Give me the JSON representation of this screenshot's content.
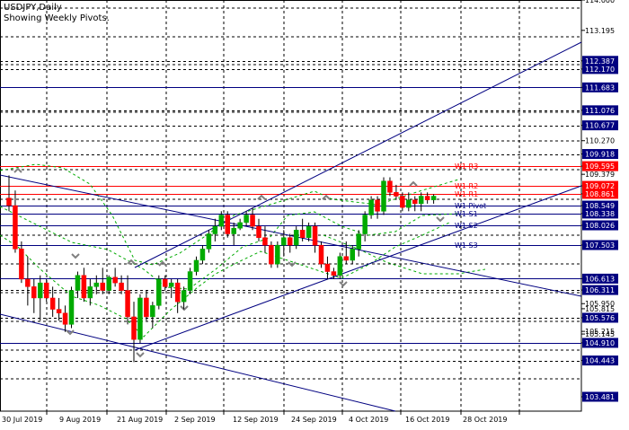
{
  "header": {
    "symbol_title": "USDJPY,Daily",
    "subtitle": "Showing Weekly Pivots."
  },
  "chart_data": {
    "type": "candlestick",
    "symbol": "USDJPY",
    "timeframe": "Daily",
    "ylim": [
      103.1,
      114.0
    ],
    "grid": true,
    "colors": {
      "up": "#00aa00",
      "down": "#ff0000",
      "pivot_resistance": "#ff0000",
      "pivot_support": "#000080",
      "level": "#000080",
      "channel": "#000080",
      "envelope": "#00aa00",
      "marker": "#808080"
    },
    "x_tick_labels": [
      "30 Jul 2019",
      "9 Aug 2019",
      "21 Aug 2019",
      "2 Sep 2019",
      "12 Sep 2019",
      "24 Sep 2019",
      "4 Oct 2019",
      "16 Oct 2019",
      "28 Oct 2019"
    ],
    "y_tick_labels": [
      "114.000",
      "113.195",
      "112.387",
      "112.170",
      "111.683",
      "111.076",
      "110.677",
      "109.918",
      "109.595",
      "109.072",
      "108.861",
      "108.549",
      "108.338",
      "108.026",
      "107.503",
      "106.613",
      "106.311",
      "105.576",
      "104.910",
      "104.443",
      "103.481"
    ],
    "partly_hidden_tick_labels": [
      "110.270",
      "109.379",
      "105.950",
      "105.815",
      "105.215",
      "105.145"
    ],
    "pivot_labels": [
      "W1 R3",
      "W1 R2",
      "W1 R1",
      "W1 Pivot",
      "W1 S1",
      "W1 S2",
      "W1 S3"
    ],
    "candles": [
      {
        "o": 108.75,
        "h": 109.35,
        "l": 108.4,
        "c": 108.55
      },
      {
        "o": 108.55,
        "h": 108.95,
        "l": 107.3,
        "c": 107.4
      },
      {
        "o": 107.4,
        "h": 107.6,
        "l": 106.5,
        "c": 106.6
      },
      {
        "o": 106.6,
        "h": 107.2,
        "l": 105.9,
        "c": 106.4
      },
      {
        "o": 106.4,
        "h": 106.6,
        "l": 105.7,
        "c": 106.1
      },
      {
        "o": 106.1,
        "h": 106.7,
        "l": 105.5,
        "c": 106.5
      },
      {
        "o": 106.5,
        "h": 106.6,
        "l": 106.0,
        "c": 106.1
      },
      {
        "o": 106.1,
        "h": 106.4,
        "l": 105.6,
        "c": 105.8
      },
      {
        "o": 105.8,
        "h": 106.1,
        "l": 105.5,
        "c": 105.7
      },
      {
        "o": 105.7,
        "h": 105.9,
        "l": 105.2,
        "c": 105.4
      },
      {
        "o": 105.4,
        "h": 106.4,
        "l": 105.3,
        "c": 106.3
      },
      {
        "o": 106.3,
        "h": 106.8,
        "l": 106.1,
        "c": 106.7
      },
      {
        "o": 106.7,
        "h": 106.9,
        "l": 106.0,
        "c": 106.1
      },
      {
        "o": 106.1,
        "h": 106.6,
        "l": 105.9,
        "c": 106.4
      },
      {
        "o": 106.4,
        "h": 106.7,
        "l": 106.2,
        "c": 106.5
      },
      {
        "o": 106.5,
        "h": 106.9,
        "l": 106.2,
        "c": 106.3
      },
      {
        "o": 106.3,
        "h": 106.7,
        "l": 106.2,
        "c": 106.65
      },
      {
        "o": 106.65,
        "h": 106.9,
        "l": 106.4,
        "c": 106.5
      },
      {
        "o": 106.5,
        "h": 106.7,
        "l": 106.2,
        "c": 106.3
      },
      {
        "o": 106.3,
        "h": 106.7,
        "l": 105.4,
        "c": 105.6
      },
      {
        "o": 105.6,
        "h": 106.0,
        "l": 104.4,
        "c": 105.0
      },
      {
        "o": 105.0,
        "h": 106.2,
        "l": 104.9,
        "c": 106.1
      },
      {
        "o": 106.1,
        "h": 106.3,
        "l": 105.5,
        "c": 105.6
      },
      {
        "o": 105.6,
        "h": 106.0,
        "l": 105.3,
        "c": 105.9
      },
      {
        "o": 105.9,
        "h": 106.7,
        "l": 105.8,
        "c": 106.6
      },
      {
        "o": 106.6,
        "h": 106.7,
        "l": 106.3,
        "c": 106.4
      },
      {
        "o": 106.4,
        "h": 106.6,
        "l": 106.1,
        "c": 106.5
      },
      {
        "o": 106.5,
        "h": 106.6,
        "l": 105.7,
        "c": 106.0
      },
      {
        "o": 106.0,
        "h": 106.4,
        "l": 105.8,
        "c": 106.3
      },
      {
        "o": 106.3,
        "h": 106.9,
        "l": 106.2,
        "c": 106.8
      },
      {
        "o": 106.8,
        "h": 107.2,
        "l": 106.7,
        "c": 107.1
      },
      {
        "o": 107.1,
        "h": 107.5,
        "l": 107.0,
        "c": 107.4
      },
      {
        "o": 107.4,
        "h": 107.9,
        "l": 107.3,
        "c": 107.8
      },
      {
        "o": 107.8,
        "h": 108.2,
        "l": 107.6,
        "c": 108.0
      },
      {
        "o": 108.0,
        "h": 108.4,
        "l": 107.9,
        "c": 108.3
      },
      {
        "o": 108.3,
        "h": 108.4,
        "l": 107.7,
        "c": 107.8
      },
      {
        "o": 107.8,
        "h": 108.1,
        "l": 107.5,
        "c": 107.95
      },
      {
        "o": 107.95,
        "h": 108.2,
        "l": 107.9,
        "c": 108.1
      },
      {
        "o": 108.1,
        "h": 108.4,
        "l": 108.0,
        "c": 108.3
      },
      {
        "o": 108.3,
        "h": 108.5,
        "l": 107.9,
        "c": 108.0
      },
      {
        "o": 108.0,
        "h": 108.2,
        "l": 107.6,
        "c": 107.7
      },
      {
        "o": 107.7,
        "h": 108.0,
        "l": 107.3,
        "c": 107.5
      },
      {
        "o": 107.5,
        "h": 107.6,
        "l": 106.9,
        "c": 107.0
      },
      {
        "o": 107.0,
        "h": 107.6,
        "l": 106.9,
        "c": 107.5
      },
      {
        "o": 107.5,
        "h": 107.9,
        "l": 107.2,
        "c": 107.7
      },
      {
        "o": 107.7,
        "h": 107.8,
        "l": 107.3,
        "c": 107.5
      },
      {
        "o": 107.5,
        "h": 108.0,
        "l": 107.4,
        "c": 107.9
      },
      {
        "o": 107.9,
        "h": 108.2,
        "l": 107.6,
        "c": 107.7
      },
      {
        "o": 107.7,
        "h": 108.1,
        "l": 107.6,
        "c": 108.0
      },
      {
        "o": 108.0,
        "h": 108.1,
        "l": 107.3,
        "c": 107.5
      },
      {
        "o": 107.5,
        "h": 107.6,
        "l": 106.9,
        "c": 107.0
      },
      {
        "o": 107.0,
        "h": 107.2,
        "l": 106.6,
        "c": 106.8
      },
      {
        "o": 106.8,
        "h": 106.9,
        "l": 106.6,
        "c": 106.7
      },
      {
        "o": 106.7,
        "h": 107.3,
        "l": 106.6,
        "c": 107.2
      },
      {
        "o": 107.2,
        "h": 107.6,
        "l": 107.0,
        "c": 107.1
      },
      {
        "o": 107.1,
        "h": 107.5,
        "l": 107.0,
        "c": 107.4
      },
      {
        "o": 107.4,
        "h": 107.9,
        "l": 107.2,
        "c": 107.8
      },
      {
        "o": 107.8,
        "h": 108.4,
        "l": 107.6,
        "c": 108.3
      },
      {
        "o": 108.3,
        "h": 108.8,
        "l": 108.2,
        "c": 108.7
      },
      {
        "o": 108.7,
        "h": 108.8,
        "l": 108.2,
        "c": 108.4
      },
      {
        "o": 108.4,
        "h": 109.3,
        "l": 108.3,
        "c": 109.2
      },
      {
        "o": 109.2,
        "h": 109.3,
        "l": 108.8,
        "c": 108.9
      },
      {
        "o": 108.9,
        "h": 109.1,
        "l": 108.7,
        "c": 108.8
      },
      {
        "o": 108.8,
        "h": 108.9,
        "l": 108.4,
        "c": 108.5
      },
      {
        "o": 108.5,
        "h": 108.9,
        "l": 108.4,
        "c": 108.7
      },
      {
        "o": 108.7,
        "h": 108.8,
        "l": 108.4,
        "c": 108.6
      },
      {
        "o": 108.6,
        "h": 108.9,
        "l": 108.4,
        "c": 108.8
      },
      {
        "o": 108.8,
        "h": 108.9,
        "l": 108.6,
        "c": 108.7
      },
      {
        "o": 108.7,
        "h": 108.85,
        "l": 108.6,
        "c": 108.8
      }
    ]
  }
}
